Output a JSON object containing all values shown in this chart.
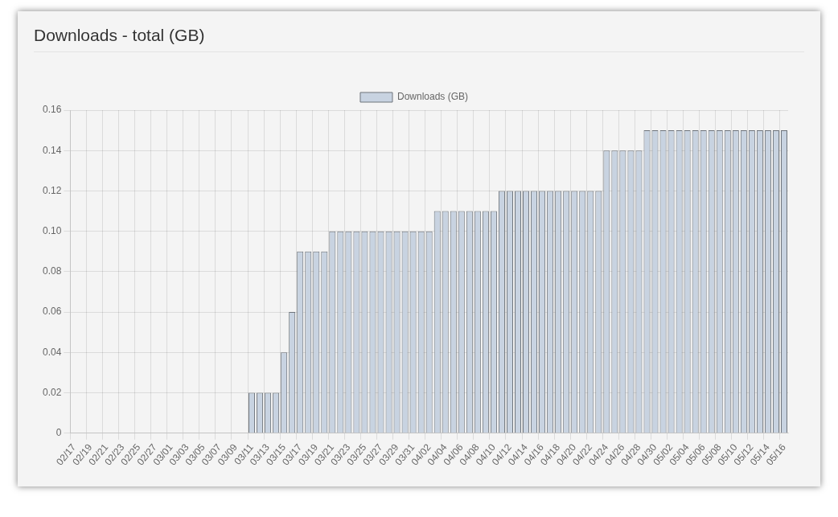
{
  "chart_data": {
    "type": "bar",
    "title": "Downloads - total (GB)",
    "categories": [
      "02/17",
      null,
      "02/19",
      null,
      "02/21",
      null,
      "02/23",
      null,
      "02/25",
      null,
      "02/27",
      null,
      "03/01",
      null,
      "03/03",
      null,
      "03/05",
      null,
      "03/07",
      null,
      "03/09",
      null,
      "03/11",
      null,
      "03/13",
      null,
      "03/15",
      null,
      "03/17",
      null,
      "03/19",
      null,
      "03/21",
      null,
      "03/23",
      null,
      "03/25",
      null,
      "03/27",
      null,
      "03/29",
      null,
      "03/31",
      null,
      "04/02",
      null,
      "04/04",
      null,
      "04/06",
      null,
      "04/08",
      null,
      "04/10",
      null,
      "04/12",
      null,
      "04/14",
      null,
      "04/16",
      null,
      "04/18",
      null,
      "04/20",
      null,
      "04/22",
      null,
      "04/24",
      null,
      "04/26",
      null,
      "04/28",
      null,
      "04/30",
      null,
      "05/02",
      null,
      "05/04",
      null,
      "05/06",
      null,
      "05/08",
      null,
      "05/10",
      null,
      "05/12",
      null,
      "05/14",
      null,
      "05/16"
    ],
    "series": [
      {
        "name": "Downloads (GB)",
        "color": "#c8d3e1",
        "values": [
          0,
          0,
          0,
          0,
          0,
          0,
          0,
          0,
          0,
          0,
          0,
          0,
          0,
          0,
          0,
          0,
          0,
          0,
          0,
          0,
          0,
          0,
          0.02,
          0.02,
          0.02,
          0.02,
          0.04,
          0.06,
          0.09,
          0.09,
          0.09,
          0.09,
          0.1,
          0.1,
          0.1,
          0.1,
          0.1,
          0.1,
          0.1,
          0.1,
          0.1,
          0.1,
          0.1,
          0.1,
          0.1,
          0.11,
          0.11,
          0.11,
          0.11,
          0.11,
          0.11,
          0.11,
          0.11,
          0.12,
          0.12,
          0.12,
          0.12,
          0.12,
          0.12,
          0.12,
          0.12,
          0.12,
          0.12,
          0.12,
          0.12,
          0.12,
          0.14,
          0.14,
          0.14,
          0.14,
          0.14,
          0.15,
          0.15,
          0.15,
          0.15,
          0.15,
          0.15,
          0.15,
          0.15,
          0.15,
          0.15,
          0.15,
          0.15,
          0.15,
          0.15,
          0.15,
          0.15,
          0.15,
          0.15
        ]
      }
    ],
    "ylim": [
      0,
      0.16
    ],
    "yticks": [
      0,
      0.02,
      0.04,
      0.06,
      0.08,
      {
        "value": 0.1,
        "label": "0.10"
      },
      0.12,
      0.14,
      0.16
    ],
    "grid": true,
    "legend": "top"
  }
}
